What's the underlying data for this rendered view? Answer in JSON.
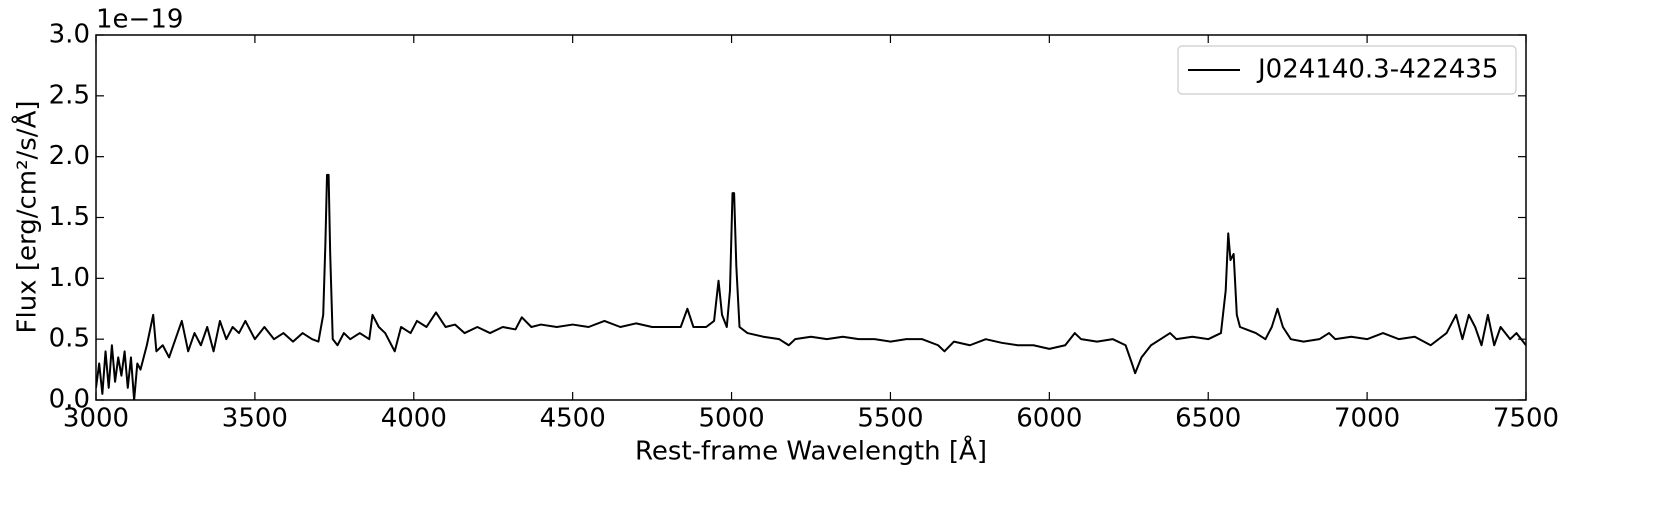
{
  "chart_data": {
    "type": "line",
    "xlabel": "Rest-frame Wavelength [Å]",
    "ylabel": "Flux [erg/cm²/s/Å]",
    "y_offset_label": "1e−19",
    "xlim": [
      3000,
      7500
    ],
    "ylim": [
      0,
      3
    ],
    "xticks": [
      3000,
      3500,
      4000,
      4500,
      5000,
      5500,
      6000,
      6500,
      7000,
      7500
    ],
    "yticks": [
      {
        "value": 0,
        "label": "0.0"
      },
      0.5,
      {
        "value": 1,
        "label": "1.0"
      },
      1.5,
      {
        "value": 2,
        "label": "2.0"
      },
      2.5,
      {
        "value": 3,
        "label": "3.0"
      }
    ],
    "tick_direction": "in",
    "legend": "upper right",
    "x": [
      3000,
      3010,
      3020,
      3030,
      3040,
      3050,
      3060,
      3070,
      3080,
      3090,
      3100,
      3110,
      3120,
      3130,
      3140,
      3160,
      3180,
      3190,
      3210,
      3230,
      3250,
      3270,
      3290,
      3310,
      3330,
      3350,
      3370,
      3390,
      3410,
      3430,
      3450,
      3470,
      3500,
      3530,
      3560,
      3590,
      3620,
      3650,
      3680,
      3700,
      3715,
      3722,
      3727,
      3732,
      3737,
      3745,
      3760,
      3780,
      3800,
      3830,
      3860,
      3870,
      3890,
      3910,
      3930,
      3940,
      3960,
      3990,
      4010,
      4040,
      4070,
      4100,
      4130,
      4160,
      4200,
      4240,
      4280,
      4320,
      4340,
      4370,
      4400,
      4450,
      4500,
      4550,
      4600,
      4650,
      4700,
      4750,
      4800,
      4840,
      4861,
      4880,
      4920,
      4945,
      4959,
      4970,
      4985,
      4995,
      5003,
      5008,
      5015,
      5025,
      5050,
      5100,
      5150,
      5180,
      5200,
      5250,
      5300,
      5350,
      5400,
      5450,
      5500,
      5550,
      5600,
      5650,
      5670,
      5700,
      5750,
      5800,
      5850,
      5900,
      5950,
      6000,
      6050,
      6080,
      6100,
      6150,
      6200,
      6240,
      6260,
      6270,
      6290,
      6320,
      6350,
      6380,
      6400,
      6450,
      6500,
      6540,
      6555,
      6563,
      6570,
      6580,
      6590,
      6600,
      6620,
      6650,
      6680,
      6700,
      6718,
      6735,
      6760,
      6800,
      6850,
      6880,
      6900,
      6950,
      7000,
      7050,
      7100,
      7150,
      7200,
      7250,
      7280,
      7300,
      7320,
      7340,
      7360,
      7380,
      7400,
      7420,
      7450,
      7470,
      7500
    ],
    "series": [
      {
        "name": "J024140.3-422435",
        "color": "#000000",
        "values": [
          0.1,
          0.3,
          0.05,
          0.4,
          0.1,
          0.45,
          0.15,
          0.35,
          0.2,
          0.4,
          0.1,
          0.35,
          0.0,
          0.3,
          0.25,
          0.45,
          0.7,
          0.4,
          0.45,
          0.35,
          0.5,
          0.65,
          0.4,
          0.55,
          0.45,
          0.6,
          0.4,
          0.65,
          0.5,
          0.6,
          0.55,
          0.65,
          0.5,
          0.6,
          0.5,
          0.55,
          0.48,
          0.55,
          0.5,
          0.48,
          0.7,
          1.3,
          1.85,
          1.85,
          1.2,
          0.5,
          0.45,
          0.55,
          0.5,
          0.55,
          0.5,
          0.7,
          0.6,
          0.55,
          0.45,
          0.4,
          0.6,
          0.55,
          0.65,
          0.6,
          0.72,
          0.6,
          0.62,
          0.55,
          0.6,
          0.55,
          0.6,
          0.58,
          0.68,
          0.6,
          0.62,
          0.6,
          0.62,
          0.6,
          0.65,
          0.6,
          0.63,
          0.6,
          0.6,
          0.6,
          0.75,
          0.6,
          0.6,
          0.65,
          0.98,
          0.7,
          0.6,
          0.9,
          1.7,
          1.7,
          1.1,
          0.6,
          0.55,
          0.52,
          0.5,
          0.45,
          0.5,
          0.52,
          0.5,
          0.52,
          0.5,
          0.5,
          0.48,
          0.5,
          0.5,
          0.45,
          0.4,
          0.48,
          0.45,
          0.5,
          0.47,
          0.45,
          0.45,
          0.42,
          0.45,
          0.55,
          0.5,
          0.48,
          0.5,
          0.45,
          0.3,
          0.22,
          0.35,
          0.45,
          0.5,
          0.55,
          0.5,
          0.52,
          0.5,
          0.55,
          0.9,
          1.37,
          1.15,
          1.2,
          0.7,
          0.6,
          0.58,
          0.55,
          0.5,
          0.6,
          0.75,
          0.6,
          0.5,
          0.48,
          0.5,
          0.55,
          0.5,
          0.52,
          0.5,
          0.55,
          0.5,
          0.52,
          0.45,
          0.55,
          0.7,
          0.5,
          0.7,
          0.6,
          0.45,
          0.7,
          0.45,
          0.6,
          0.5,
          0.55,
          0.45
        ]
      }
    ]
  }
}
